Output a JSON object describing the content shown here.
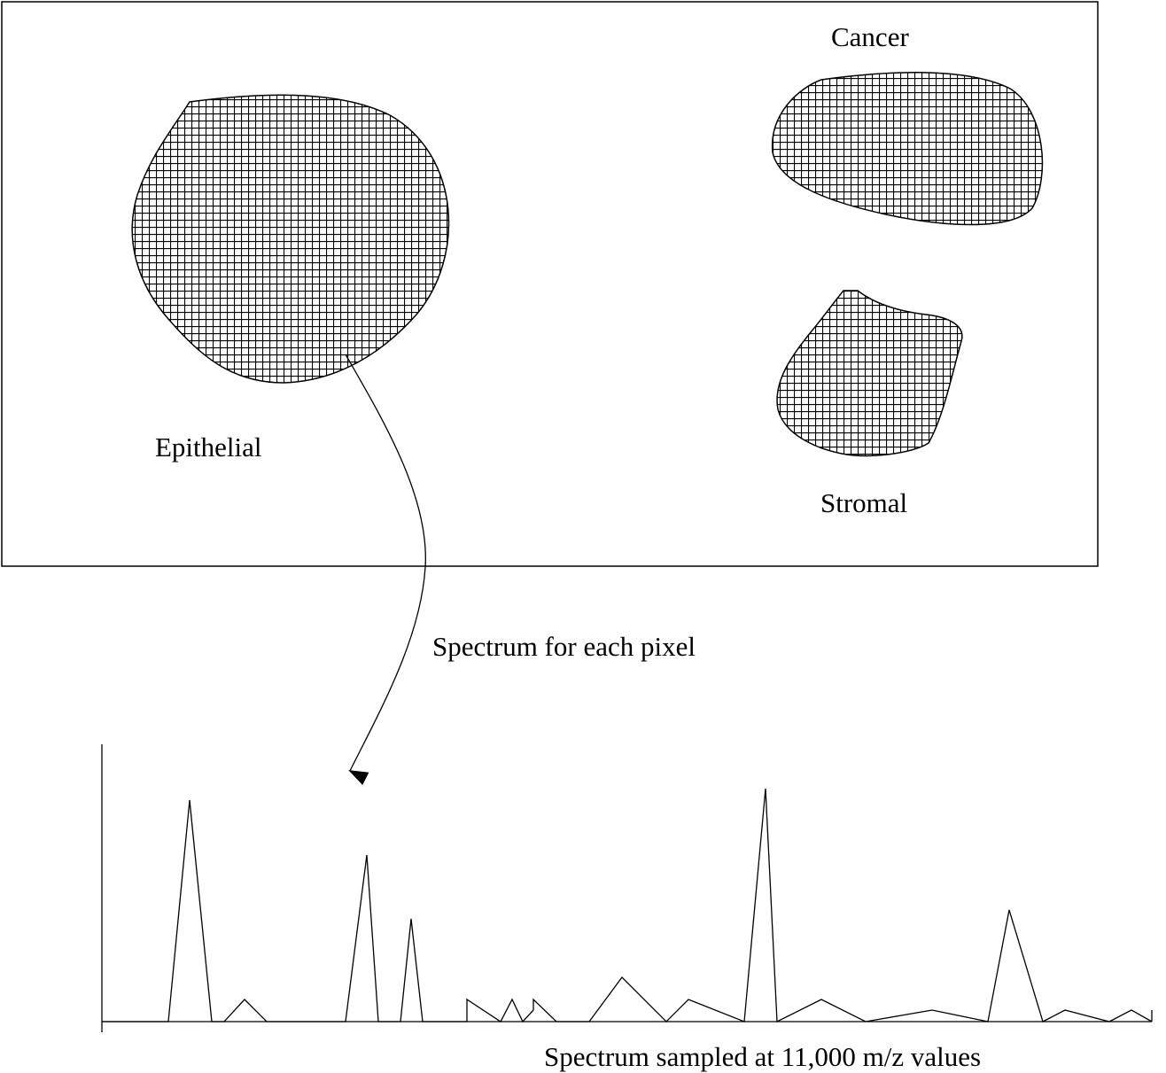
{
  "regions": {
    "epithelial": {
      "label": "Epithelial"
    },
    "cancer": {
      "label": "Cancer"
    },
    "stromal": {
      "label": "Stromal"
    }
  },
  "arrow_label": "Spectrum for each pixel",
  "spectrum": {
    "caption": "Spectrum sampled at 11,000 m/z values"
  },
  "colors": {
    "ink": "#000000",
    "background": "#ffffff"
  }
}
